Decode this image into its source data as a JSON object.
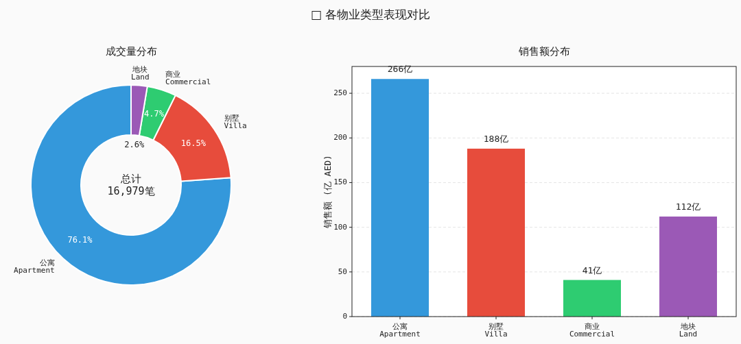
{
  "chart_data": [
    {
      "type": "other",
      "title": "□ 各物业类型表现对比"
    },
    {
      "type": "donut",
      "title": "成交量分布",
      "categories": [
        "公寓\nApartment",
        "别墅\nVilla",
        "商业\nCommercial",
        "地块\nLand"
      ],
      "values": [
        76.1,
        16.5,
        4.7,
        2.6
      ],
      "colors": [
        "#3498db",
        "#e74c3c",
        "#2ecc71",
        "#9b59b6"
      ],
      "value_labels": [
        "76.1%",
        "16.5%",
        "4.7%",
        "2.6%"
      ],
      "annotations": [
        "总计\n16,979笔"
      ]
    },
    {
      "type": "bar",
      "title": "销售额分布",
      "ylabel": "销售额 (亿 AED)",
      "categories": [
        "公寓\nApartment",
        "别墅\nVilla",
        "商业\nCommercial",
        "地块\nLand"
      ],
      "values": [
        266,
        188,
        41,
        112
      ],
      "colors": [
        "#3498db",
        "#e74c3c",
        "#2ecc71",
        "#9b59b6"
      ],
      "value_labels": [
        "266亿",
        "188亿",
        "41亿",
        "112亿"
      ],
      "ylim": [
        0,
        280
      ],
      "yticks": [
        0,
        50,
        100,
        150,
        200,
        250
      ],
      "grid": "y"
    }
  ]
}
